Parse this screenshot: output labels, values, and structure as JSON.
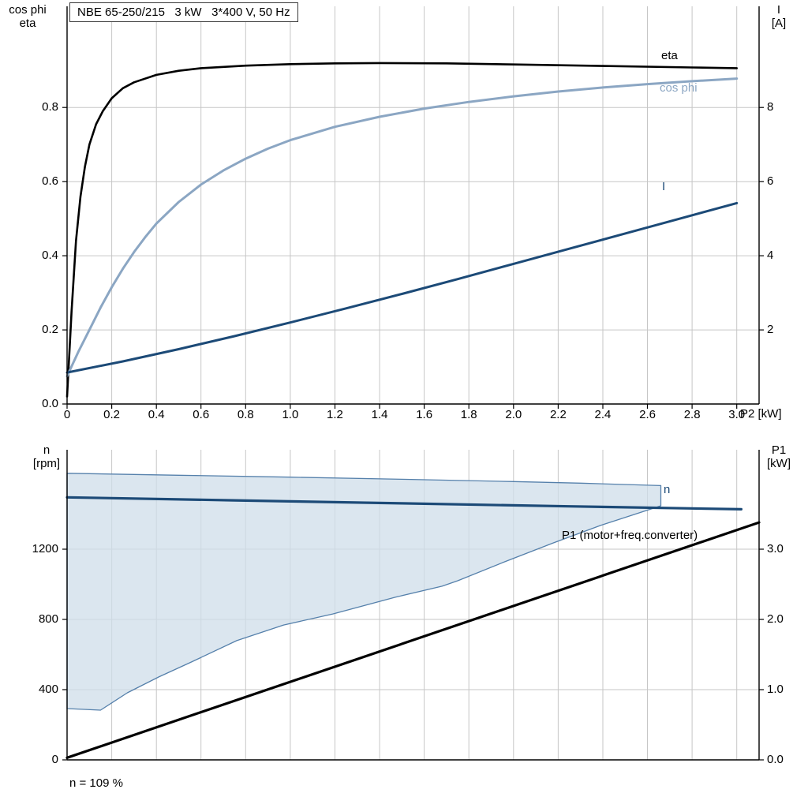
{
  "colors": {
    "eta": "#000000",
    "cos_phi": "#8ba6c3",
    "current": "#1c4a77",
    "speed": "#1c4a77",
    "p1": "#000000",
    "envelope_fill": "#cfdde9",
    "envelope_stroke": "#5580ab",
    "grid": "#c6c6c6",
    "axis": "#000000"
  },
  "chart_data": [
    {
      "id": "top",
      "type": "line",
      "title": "NBE 65-250/215   3 kW   3*400 V, 50 Hz",
      "xlabel": "P2 [kW]",
      "ylabel_left": [
        "cos phi",
        "eta"
      ],
      "ylabel_right": [
        "I",
        "[A]"
      ],
      "xlim": [
        0,
        3.1
      ],
      "ylim_left": [
        0,
        1.073
      ],
      "ylim_right": [
        0,
        10.73
      ],
      "grid": true,
      "xticks": {
        "values": [
          0,
          0.2,
          0.4,
          0.6,
          0.8,
          1.0,
          1.2,
          1.4,
          1.6,
          1.8,
          2.0,
          2.2,
          2.4,
          2.6,
          2.8,
          3.0
        ],
        "labels": [
          "0",
          "0.2",
          "0.4",
          "0.6",
          "0.8",
          "1.0",
          "1.2",
          "1.4",
          "1.6",
          "1.8",
          "2.0",
          "2.2",
          "2.4",
          "2.6",
          "2.8",
          "3.0"
        ]
      },
      "yticks_left": {
        "values": [
          0,
          0.2,
          0.4,
          0.6,
          0.8
        ],
        "labels": [
          "0.0",
          "0.2",
          "0.4",
          "0.6",
          "0.8"
        ]
      },
      "yticks_right": {
        "values": [
          2,
          4,
          6,
          8
        ],
        "labels": [
          "2",
          "4",
          "6",
          "8"
        ]
      },
      "series": [
        {
          "name": "eta",
          "label": "eta",
          "axis": "left",
          "color": "#000000",
          "width": 2.6,
          "points": [
            [
              0,
              0.02
            ],
            [
              0.02,
              0.25
            ],
            [
              0.04,
              0.44
            ],
            [
              0.06,
              0.56
            ],
            [
              0.08,
              0.64
            ],
            [
              0.1,
              0.7
            ],
            [
              0.13,
              0.755
            ],
            [
              0.16,
              0.79
            ],
            [
              0.2,
              0.825
            ],
            [
              0.25,
              0.852
            ],
            [
              0.3,
              0.868
            ],
            [
              0.4,
              0.888
            ],
            [
              0.5,
              0.899
            ],
            [
              0.6,
              0.906
            ],
            [
              0.8,
              0.913
            ],
            [
              1.0,
              0.917
            ],
            [
              1.2,
              0.919
            ],
            [
              1.4,
              0.92
            ],
            [
              1.7,
              0.919
            ],
            [
              2.0,
              0.916
            ],
            [
              2.4,
              0.912
            ],
            [
              2.8,
              0.908
            ],
            [
              3.0,
              0.906
            ]
          ]
        },
        {
          "name": "cos_phi",
          "label": "cos phi",
          "axis": "left",
          "color": "#8ba6c3",
          "width": 3,
          "points": [
            [
              0,
              0.075
            ],
            [
              0.05,
              0.14
            ],
            [
              0.1,
              0.2
            ],
            [
              0.15,
              0.26
            ],
            [
              0.2,
              0.315
            ],
            [
              0.25,
              0.365
            ],
            [
              0.3,
              0.41
            ],
            [
              0.35,
              0.45
            ],
            [
              0.4,
              0.487
            ],
            [
              0.5,
              0.545
            ],
            [
              0.6,
              0.592
            ],
            [
              0.7,
              0.63
            ],
            [
              0.8,
              0.662
            ],
            [
              0.9,
              0.689
            ],
            [
              1.0,
              0.712
            ],
            [
              1.2,
              0.748
            ],
            [
              1.4,
              0.775
            ],
            [
              1.6,
              0.797
            ],
            [
              1.8,
              0.815
            ],
            [
              2.0,
              0.83
            ],
            [
              2.2,
              0.843
            ],
            [
              2.4,
              0.854
            ],
            [
              2.6,
              0.863
            ],
            [
              2.8,
              0.871
            ],
            [
              3.0,
              0.878
            ]
          ]
        },
        {
          "name": "current",
          "label": "I",
          "axis": "right",
          "color": "#1c4a77",
          "width": 3,
          "points": [
            [
              0,
              0.85
            ],
            [
              0.25,
              1.15
            ],
            [
              0.5,
              1.48
            ],
            [
              0.75,
              1.83
            ],
            [
              1.0,
              2.2
            ],
            [
              1.25,
              2.58
            ],
            [
              1.5,
              2.97
            ],
            [
              1.75,
              3.37
            ],
            [
              2.0,
              3.78
            ],
            [
              2.25,
              4.19
            ],
            [
              2.5,
              4.6
            ],
            [
              2.75,
              5.01
            ],
            [
              3.0,
              5.42
            ]
          ]
        }
      ]
    },
    {
      "id": "bottom",
      "type": "line",
      "xlabel": "",
      "ylabel_left": [
        "n",
        "[rpm]"
      ],
      "ylabel_right": [
        "P1",
        "[kW]"
      ],
      "footnote": "n = 109 %",
      "xlim": [
        0,
        3.1
      ],
      "ylim_left": [
        0,
        1766
      ],
      "ylim_right": [
        0,
        4.415
      ],
      "grid": true,
      "xticks": {
        "values": [
          0,
          0.2,
          0.4,
          0.6,
          0.8,
          1.0,
          1.2,
          1.4,
          1.6,
          1.8,
          2.0,
          2.2,
          2.4,
          2.6,
          2.8,
          3.0
        ],
        "labels": []
      },
      "yticks_left": {
        "values": [
          0,
          400,
          800,
          1200
        ],
        "labels": [
          "0",
          "400",
          "800",
          "1200"
        ]
      },
      "yticks_right": {
        "values": [
          0,
          1,
          2,
          3
        ],
        "labels": [
          "0.0",
          "1.0",
          "2.0",
          "3.0"
        ]
      },
      "envelope": {
        "name": "speed-operating-range",
        "fill": "#cfdde9",
        "stroke": "#5580ab",
        "upper": [
          [
            0,
            1632
          ],
          [
            0.5,
            1621
          ],
          [
            1.0,
            1610
          ],
          [
            1.5,
            1598
          ],
          [
            2.0,
            1585
          ],
          [
            2.3,
            1576
          ],
          [
            2.66,
            1562
          ]
        ],
        "lower": [
          [
            0,
            292
          ],
          [
            0.15,
            283
          ],
          [
            0.27,
            382
          ],
          [
            0.41,
            472
          ],
          [
            0.55,
            553
          ],
          [
            0.76,
            679
          ],
          [
            0.97,
            768
          ],
          [
            1.19,
            831
          ],
          [
            1.47,
            926
          ],
          [
            1.68,
            989
          ],
          [
            1.75,
            1020
          ],
          [
            1.96,
            1128
          ],
          [
            2.18,
            1236
          ],
          [
            2.39,
            1335
          ],
          [
            2.53,
            1393
          ],
          [
            2.66,
            1447
          ]
        ]
      },
      "series": [
        {
          "name": "speed",
          "label": "n",
          "axis": "left",
          "color": "#1c4a77",
          "width": 3.2,
          "points": [
            [
              0,
              1495
            ],
            [
              0.75,
              1478
            ],
            [
              1.5,
              1461
            ],
            [
              2.25,
              1444
            ],
            [
              3.02,
              1427
            ]
          ]
        },
        {
          "name": "p1",
          "label": "P1 (motor+freq.converter)",
          "axis": "right",
          "color": "#000000",
          "width": 3.2,
          "points": [
            [
              0,
              0.03
            ],
            [
              3.1,
              3.38
            ]
          ]
        }
      ]
    }
  ]
}
